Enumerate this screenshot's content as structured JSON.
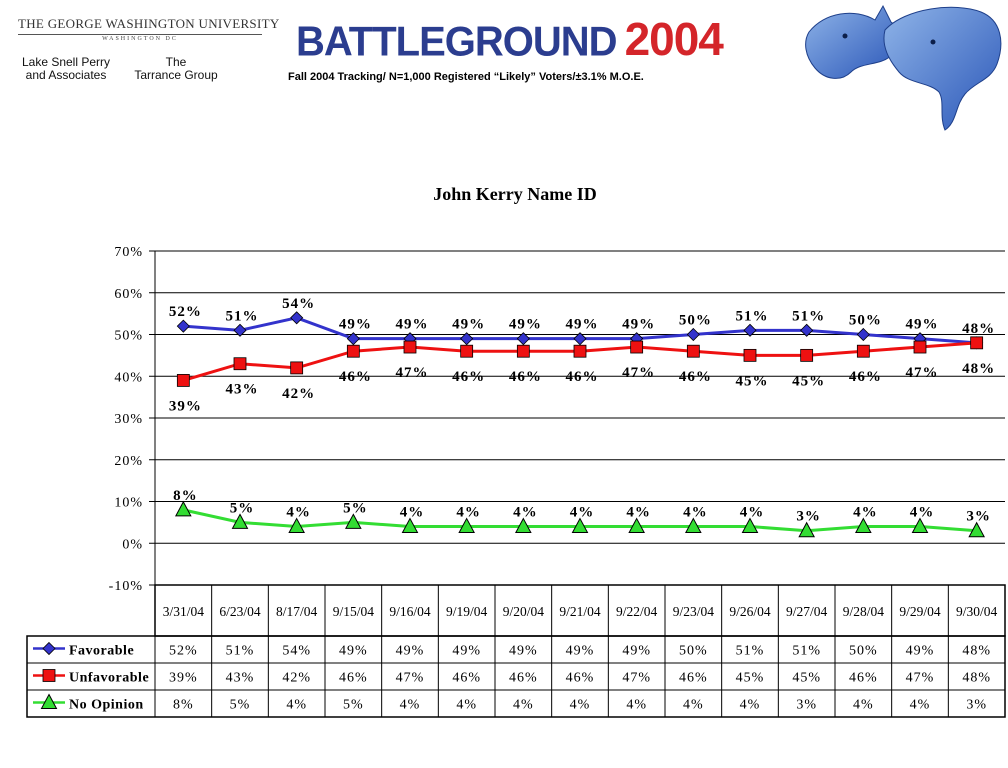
{
  "header": {
    "university": "THE GEORGE WASHINGTON UNIVERSITY",
    "university_sub": "WASHINGTON DC",
    "partner1_line1": "Lake Snell Perry",
    "partner1_line2": "and Associates",
    "partner2_line1": "The",
    "partner2_line2": "Tarrance Group",
    "logo_word": "BATTLEGROUND",
    "logo_year": "2004",
    "subtitle": "Fall 2004 Tracking/ N=1,000 Registered “Likely” Voters/±3.1% M.O.E."
  },
  "colors": {
    "favorable": "#3333cc",
    "unfavorable": "#ee1111",
    "no_opinion": "#33dd33"
  },
  "chart_data": {
    "type": "line",
    "title": "John Kerry Name ID",
    "categories": [
      "3/31/04",
      "6/23/04",
      "8/17/04",
      "9/15/04",
      "9/16/04",
      "9/19/04",
      "9/20/04",
      "9/21/04",
      "9/22/04",
      "9/23/04",
      "9/26/04",
      "9/27/04",
      "9/28/04",
      "9/29/04",
      "9/30/04"
    ],
    "ylim": [
      -10,
      70
    ],
    "yticks": [
      "-10%",
      "0%",
      "10%",
      "20%",
      "30%",
      "40%",
      "50%",
      "60%",
      "70%"
    ],
    "grid": true,
    "legend": "data table below chart",
    "series": [
      {
        "name": "Favorable",
        "marker": "diamond",
        "values": [
          52,
          51,
          54,
          49,
          49,
          49,
          49,
          49,
          49,
          50,
          51,
          51,
          50,
          49,
          48
        ],
        "labels": [
          "52%",
          "51%",
          "54%",
          "49%",
          "49%",
          "49%",
          "49%",
          "49%",
          "49%",
          "50%",
          "51%",
          "51%",
          "50%",
          "49%",
          "48%"
        ]
      },
      {
        "name": "Unfavorable",
        "marker": "square",
        "values": [
          39,
          43,
          42,
          46,
          47,
          46,
          46,
          46,
          47,
          46,
          45,
          45,
          46,
          47,
          48
        ],
        "labels": [
          "39%",
          "43%",
          "42%",
          "46%",
          "47%",
          "46%",
          "46%",
          "46%",
          "47%",
          "46%",
          "45%",
          "45%",
          "46%",
          "47%",
          "48%"
        ]
      },
      {
        "name": "No Opinion",
        "marker": "triangle",
        "values": [
          8,
          5,
          4,
          5,
          4,
          4,
          4,
          4,
          4,
          4,
          4,
          3,
          4,
          4,
          3
        ],
        "labels": [
          "8%",
          "5%",
          "4%",
          "5%",
          "4%",
          "4%",
          "4%",
          "4%",
          "4%",
          "4%",
          "4%",
          "3%",
          "4%",
          "4%",
          "3%"
        ]
      }
    ]
  }
}
